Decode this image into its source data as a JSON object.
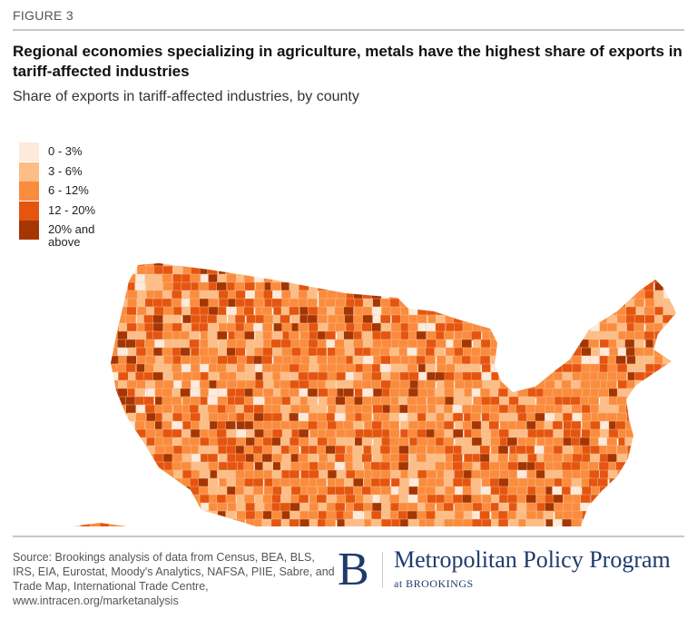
{
  "figure_label": "FIGURE 3",
  "title": "Regional economies specializing in agriculture, metals have the highest share of exports in tariff-affected industries",
  "subtitle": "Share of exports in tariff-affected industries, by county",
  "legend": [
    {
      "label": "0 - 3%",
      "color": "#fdeadb"
    },
    {
      "label": "3 - 6%",
      "color": "#fdbd86"
    },
    {
      "label": "6 - 12%",
      "color": "#fb8c3d"
    },
    {
      "label": "12 - 20%",
      "color": "#e5550f"
    },
    {
      "label": "20% and above",
      "color": "#a43604"
    }
  ],
  "source": "Source: Brookings analysis of data from Census, BEA, BLS, IRS, EIA, Eurostat, Moody's Analytics, NAFSA, PIIE, Sabre, and Trade Map, International Trade Centre, www.intracen.org/marketanalysis",
  "logo": {
    "mark": "B",
    "name": "Metropolitan Policy Program",
    "sub": "at BROOKINGS"
  }
}
